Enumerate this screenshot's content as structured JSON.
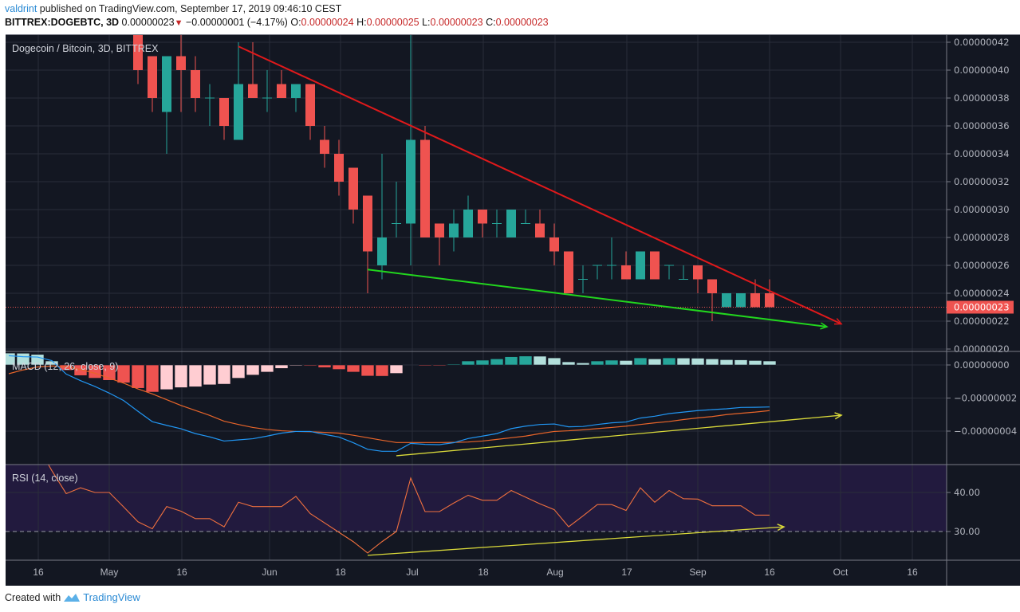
{
  "header": {
    "author": "valdrint",
    "published_text": "published on TradingView.com, September 17, 2019 09:46:10 CEST",
    "symbol": "BITTREX:DOGEBTC, 3D",
    "last_price": "0.00000023",
    "change": "−0.00000001 (−4.17%)",
    "change_direction_icon": "triangle-down-icon",
    "open_label": "O:",
    "open": "0.00000024",
    "high_label": "H:",
    "high": "0.00000025",
    "low_label": "L:",
    "low": "0.00000023",
    "close_label": "C:",
    "close": "0.00000023"
  },
  "footer": {
    "created_with": "Created with",
    "brand": "TradingView"
  },
  "colors": {
    "background": "#131722",
    "grid": "#2a2e39",
    "up": "#26a69a",
    "down": "#ef5350",
    "hist_up_strong": "#26a69a",
    "hist_up_weak": "#b2dfdb",
    "hist_down_strong": "#ef5350",
    "hist_down_weak": "#ffcdd2",
    "macd_line": "#2196f3",
    "signal_line": "#e8652a",
    "rsi_line": "#f0703e",
    "rsi_band": "#221a3e",
    "resistance": "#e0191b",
    "support": "#22d61e",
    "divergence": "#d9d93a"
  },
  "time_axis": {
    "labels": [
      "16",
      "May",
      "16",
      "Jun",
      "18",
      "Jul",
      "18",
      "Aug",
      "17",
      "Sep",
      "16",
      "Oct",
      "16"
    ]
  },
  "chart_data": [
    {
      "type": "candlestick",
      "title": "Dogecoin / Bitcoin, 3D, BITTREX",
      "x": [
        "2019-04-08",
        "2019-04-11",
        "2019-04-14",
        "2019-04-17",
        "2019-04-20",
        "2019-04-23",
        "2019-04-26",
        "2019-04-29",
        "2019-05-02",
        "2019-05-05",
        "2019-05-08",
        "2019-05-11",
        "2019-05-14",
        "2019-05-17",
        "2019-05-20",
        "2019-05-23",
        "2019-05-26",
        "2019-05-29",
        "2019-06-01",
        "2019-06-04",
        "2019-06-07",
        "2019-06-10",
        "2019-06-13",
        "2019-06-16",
        "2019-06-19",
        "2019-06-22",
        "2019-06-25",
        "2019-06-28",
        "2019-07-01",
        "2019-07-04",
        "2019-07-07",
        "2019-07-10",
        "2019-07-13",
        "2019-07-16",
        "2019-07-19",
        "2019-07-22",
        "2019-07-25",
        "2019-07-28",
        "2019-07-31",
        "2019-08-03",
        "2019-08-06",
        "2019-08-09",
        "2019-08-12",
        "2019-08-15",
        "2019-08-18",
        "2019-08-21",
        "2019-08-24",
        "2019-08-27",
        "2019-08-30",
        "2019-09-02",
        "2019-09-05",
        "2019-09-08",
        "2019-09-11",
        "2019-09-14"
      ],
      "ohlc_fields": [
        "open",
        "high",
        "low",
        "close"
      ],
      "candles": [
        null,
        null,
        null,
        null,
        null,
        null,
        null,
        null,
        null,
        [
          4.4e-07,
          4.5e-07,
          3.9e-07,
          4e-07
        ],
        [
          4.1e-07,
          4.1e-07,
          3.7e-07,
          3.8e-07
        ],
        [
          3.7e-07,
          4.1e-07,
          3.4e-07,
          4.1e-07
        ],
        [
          4.1e-07,
          4.3e-07,
          3.7e-07,
          4e-07
        ],
        [
          4e-07,
          4.1e-07,
          3.7e-07,
          3.8e-07
        ],
        [
          3.8e-07,
          3.9e-07,
          3.6e-07,
          3.8e-07
        ],
        [
          3.8e-07,
          3.8e-07,
          3.5e-07,
          3.6e-07
        ],
        [
          3.5e-07,
          4.2e-07,
          3.5e-07,
          3.9e-07
        ],
        [
          3.9e-07,
          4.2e-07,
          3.8e-07,
          3.8e-07
        ],
        [
          3.8e-07,
          4e-07,
          3.7e-07,
          3.8e-07
        ],
        [
          3.9e-07,
          4e-07,
          3.8e-07,
          3.8e-07
        ],
        [
          3.8e-07,
          3.9e-07,
          3.7e-07,
          3.9e-07
        ],
        [
          3.9e-07,
          3.9e-07,
          3.5e-07,
          3.6e-07
        ],
        [
          3.5e-07,
          3.6e-07,
          3.3e-07,
          3.4e-07
        ],
        [
          3.4e-07,
          3.5e-07,
          3.1e-07,
          3.2e-07
        ],
        [
          3.3e-07,
          3.3e-07,
          2.9e-07,
          3e-07
        ],
        [
          3.1e-07,
          3.1e-07,
          2.4e-07,
          2.7e-07
        ],
        [
          2.6e-07,
          3.4e-07,
          2.5e-07,
          2.8e-07
        ],
        [
          2.9e-07,
          3.2e-07,
          2.8e-07,
          2.9e-07
        ],
        [
          2.9e-07,
          4.6e-07,
          2.6e-07,
          3.5e-07
        ],
        [
          3.5e-07,
          3.6e-07,
          2.8e-07,
          2.8e-07
        ],
        [
          2.9e-07,
          2.9e-07,
          2.6e-07,
          2.8e-07
        ],
        [
          2.8e-07,
          3e-07,
          2.7e-07,
          2.9e-07
        ],
        [
          2.8e-07,
          3.1e-07,
          2.8e-07,
          3e-07
        ],
        [
          3e-07,
          3e-07,
          2.8e-07,
          2.9e-07
        ],
        [
          2.9e-07,
          3e-07,
          2.8e-07,
          2.9e-07
        ],
        [
          2.8e-07,
          3e-07,
          2.8e-07,
          3e-07
        ],
        [
          2.9e-07,
          3e-07,
          2.9e-07,
          2.9e-07
        ],
        [
          2.9e-07,
          3e-07,
          2.8e-07,
          2.8e-07
        ],
        [
          2.8e-07,
          2.9e-07,
          2.6e-07,
          2.7e-07
        ],
        [
          2.7e-07,
          2.7e-07,
          2.4e-07,
          2.4e-07
        ],
        [
          2.5e-07,
          2.6e-07,
          2.4e-07,
          2.5e-07
        ],
        [
          2.6e-07,
          2.6e-07,
          2.5e-07,
          2.6e-07
        ],
        [
          2.6e-07,
          2.8e-07,
          2.5e-07,
          2.6e-07
        ],
        [
          2.6e-07,
          2.7e-07,
          2.5e-07,
          2.5e-07
        ],
        [
          2.5e-07,
          2.7e-07,
          2.5e-07,
          2.7e-07
        ],
        [
          2.7e-07,
          2.7e-07,
          2.5e-07,
          2.5e-07
        ],
        [
          2.6e-07,
          2.6e-07,
          2.5e-07,
          2.6e-07
        ],
        [
          2.5e-07,
          2.6e-07,
          2.5e-07,
          2.5e-07
        ],
        [
          2.6e-07,
          2.6e-07,
          2.4e-07,
          2.5e-07
        ],
        [
          2.5e-07,
          2.5e-07,
          2.2e-07,
          2.4e-07
        ],
        [
          2.3e-07,
          2.4e-07,
          2.3e-07,
          2.4e-07
        ],
        [
          2.3e-07,
          2.4e-07,
          2.3e-07,
          2.4e-07
        ],
        [
          2.4e-07,
          2.5e-07,
          2.3e-07,
          2.3e-07
        ],
        [
          2.4e-07,
          2.5e-07,
          2.3e-07,
          2.3e-07
        ]
      ],
      "y_axis": {
        "ticks": [
          "0.00000042",
          "0.00000040",
          "0.00000038",
          "0.00000036",
          "0.00000034",
          "0.00000032",
          "0.00000030",
          "0.00000028",
          "0.00000026",
          "0.00000024",
          "0.00000022",
          "0.00000020"
        ],
        "range": [
          2e-07,
          4.28e-07
        ]
      },
      "last_price_label": "0.00000023",
      "trendlines": [
        {
          "role": "resistance",
          "from": [
            "2019-05-26",
            4.17e-07
          ],
          "to": [
            "2019-09-29",
            2.18e-07
          ],
          "arrow": true
        },
        {
          "role": "support",
          "from": [
            "2019-06-22",
            2.57e-07
          ],
          "to": [
            "2019-09-26",
            2.16e-07
          ],
          "arrow": true
        }
      ],
      "grid": true
    },
    {
      "type": "bar+line",
      "title": "MACD (12, 26, close, 9)",
      "histogram": [
        7.2e-09,
        7.1e-09,
        6.4e-09,
        2.4e-09,
        -3.2e-09,
        -6.4e-09,
        -8e-09,
        -9.3e-09,
        -1.08e-08,
        -1.41e-08,
        -1.64e-08,
        -1.49e-08,
        -1.37e-08,
        -1.32e-08,
        -1.2e-08,
        -1.16e-08,
        -8e-09,
        -6.1e-09,
        -4.3e-09,
        -2.1e-09,
        -2e-10,
        -5e-10,
        -1.6e-09,
        -2.7e-09,
        -4.3e-09,
        -6.7e-09,
        -6.8e-09,
        -5.1e-09,
        0,
        -3e-10,
        -4e-10,
        5e-10,
        2.4e-09,
        2.9e-09,
        3.7e-09,
        5e-09,
        5.4e-09,
        5.3e-09,
        4.3e-09,
        1.9e-09,
        1.3e-09,
        2.4e-09,
        2.9e-09,
        2.7e-09,
        4.3e-09,
        3.7e-09,
        4.3e-09,
        4.2e-09,
        4.1e-09,
        3.7e-09,
        3.2e-09,
        3.1e-09,
        2.7e-09,
        2.4e-09
      ],
      "macd": [
        5.6e-09,
        5e-09,
        4.8e-09,
        2.6e-09,
        -5.5e-09,
        -9.5e-09,
        -1.3e-08,
        -1.7e-08,
        -2.15e-08,
        -2.8e-08,
        -3.43e-08,
        -3.65e-08,
        -3.86e-08,
        -4.15e-08,
        -4.35e-08,
        -4.6e-08,
        -4.53e-08,
        -4.46e-08,
        -4.3e-08,
        -4.12e-08,
        -4.02e-08,
        -4.02e-08,
        -4.2e-08,
        -4.36e-08,
        -4.7e-08,
        -5.1e-08,
        -5.22e-08,
        -5.22e-08,
        -4.74e-08,
        -4.8e-08,
        -4.82e-08,
        -4.7e-08,
        -4.45e-08,
        -4.3e-08,
        -4.15e-08,
        -3.85e-08,
        -3.7e-08,
        -3.6e-08,
        -3.57e-08,
        -3.74e-08,
        -3.72e-08,
        -3.6e-08,
        -3.5e-08,
        -3.45e-08,
        -3.21e-08,
        -3.1e-08,
        -2.94e-08,
        -2.85e-08,
        -2.76e-08,
        -2.7e-08,
        -2.65e-08,
        -2.57e-08,
        -2.56e-08,
        -2.54e-08
      ],
      "signal": [
        -5.3e-09,
        -3e-09,
        -1.2e-09,
        -6e-10,
        -1e-09,
        -2.8e-09,
        -5e-09,
        -8e-09,
        -1.1e-08,
        -1.45e-08,
        -1.75e-08,
        -2.1e-08,
        -2.45e-08,
        -2.75e-08,
        -3.05e-08,
        -3.4e-08,
        -3.6e-08,
        -3.78e-08,
        -3.9e-08,
        -3.98e-08,
        -4.02e-08,
        -4.04e-08,
        -4.08e-08,
        -4.12e-08,
        -4.25e-08,
        -4.4e-08,
        -4.55e-08,
        -4.69e-08,
        -4.69e-08,
        -4.69e-08,
        -4.69e-08,
        -4.68e-08,
        -4.66e-08,
        -4.6e-08,
        -4.5e-08,
        -4.4e-08,
        -4.3e-08,
        -4.15e-08,
        -4.02e-08,
        -3.98e-08,
        -3.92e-08,
        -3.85e-08,
        -3.78e-08,
        -3.7e-08,
        -3.6e-08,
        -3.5e-08,
        -3.42e-08,
        -3.3e-08,
        -3.2e-08,
        -3.12e-08,
        -3e-08,
        -2.92e-08,
        -2.85e-08,
        -2.76e-08
      ],
      "y_axis": {
        "ticks": [
          "0.00000000",
          "−0.00000002",
          "−0.00000004"
        ]
      },
      "trendlines": [
        {
          "role": "divergence",
          "from": [
            "2019-06-28",
            -5.49e-08
          ],
          "to": [
            "2019-09-29",
            -3.04e-08
          ],
          "arrow": true
        }
      ],
      "grid": true
    },
    {
      "type": "line",
      "title": "RSI (14, close)",
      "values": [
        null,
        null,
        52,
        45.6,
        39.7,
        41.2,
        40,
        40,
        36.3,
        32.5,
        30.7,
        36.4,
        35.2,
        33.3,
        33.3,
        31.2,
        37.5,
        36.4,
        36.4,
        36.4,
        39,
        34.6,
        32.2,
        29.8,
        27.4,
        24.5,
        27.4,
        30,
        43.7,
        35.1,
        35.1,
        37.3,
        39.3,
        38,
        38,
        40.5,
        38.8,
        37.1,
        35.6,
        31.2,
        34,
        36.9,
        36.9,
        35.4,
        41.2,
        37.5,
        40.5,
        38.4,
        38.3,
        36.6,
        36.6,
        36.6,
        34.2,
        34.2
      ],
      "y_axis": {
        "ticks": [
          "40.00",
          "30.00"
        ]
      },
      "band": [
        30,
        70
      ],
      "trendlines": [
        {
          "role": "divergence",
          "from": [
            "2019-06-22",
            23.9
          ],
          "to": [
            "2019-09-17",
            31.2
          ],
          "arrow": true
        }
      ],
      "grid": true
    }
  ]
}
